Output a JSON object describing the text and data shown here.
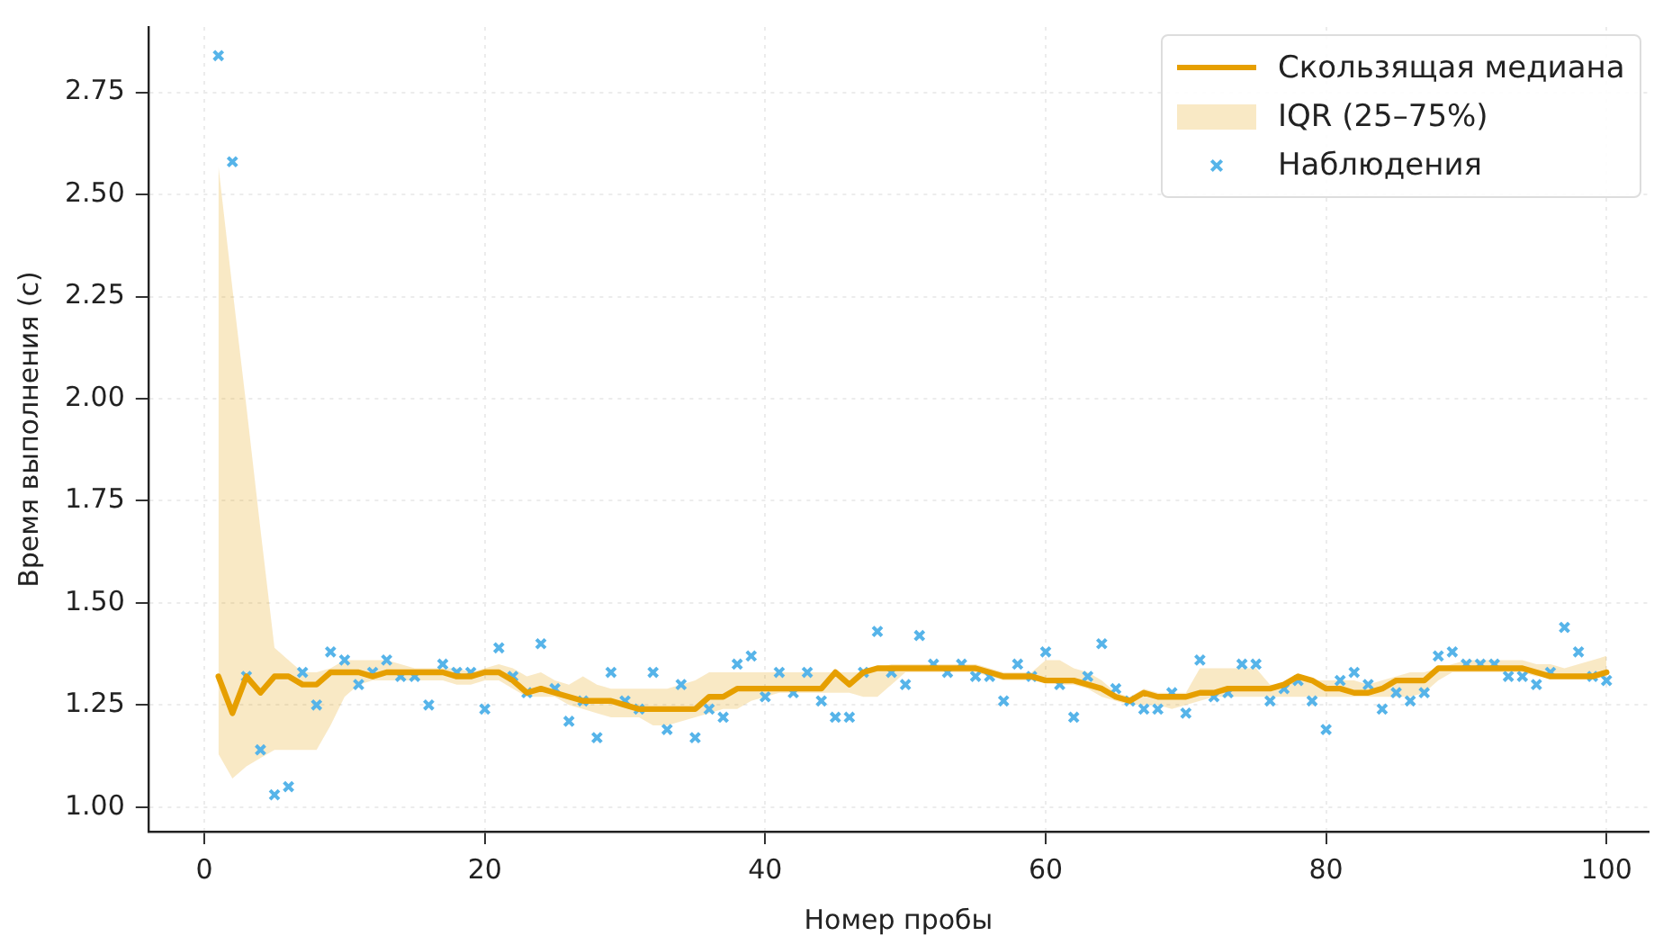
{
  "chart_data": {
    "type": "line",
    "xlabel": "Номер пробы",
    "ylabel": "Время выполнения (с)",
    "x": [
      1,
      2,
      3,
      4,
      5,
      6,
      7,
      8,
      9,
      10,
      11,
      12,
      13,
      14,
      15,
      16,
      17,
      18,
      19,
      20,
      21,
      22,
      23,
      24,
      25,
      26,
      27,
      28,
      29,
      30,
      31,
      32,
      33,
      34,
      35,
      36,
      37,
      38,
      39,
      40,
      41,
      42,
      43,
      44,
      45,
      46,
      47,
      48,
      49,
      50,
      51,
      52,
      53,
      54,
      55,
      56,
      57,
      58,
      59,
      60,
      61,
      62,
      63,
      64,
      65,
      66,
      67,
      68,
      69,
      70,
      71,
      72,
      73,
      74,
      75,
      76,
      77,
      78,
      79,
      80,
      81,
      82,
      83,
      84,
      85,
      86,
      87,
      88,
      89,
      90,
      91,
      92,
      93,
      94,
      95,
      96,
      97,
      98,
      99,
      100
    ],
    "xlim": [
      -4,
      103
    ],
    "xticks": [
      0,
      20,
      40,
      60,
      80,
      100
    ],
    "ylim": [
      0.94,
      2.91
    ],
    "yticks": [
      {
        "value": 1,
        "label": "1.00"
      },
      {
        "value": 1.25,
        "label": "1.25"
      },
      {
        "value": 1.5,
        "label": "1.50"
      },
      {
        "value": 1.75,
        "label": "1.75"
      },
      {
        "value": 2,
        "label": "2.00"
      },
      {
        "value": 2.25,
        "label": "2.25"
      },
      {
        "value": 2.5,
        "label": "2.50"
      },
      {
        "value": 2.75,
        "label": "2.75"
      }
    ],
    "grid": true,
    "legend": "top right",
    "line_style": "solid",
    "annotations": [
      "IQR (25–75%)"
    ],
    "series": [
      {
        "name": "Скользящая медиана",
        "color": "#e69f00",
        "values": [
          1.32,
          1.23,
          1.32,
          1.28,
          1.32,
          1.32,
          1.3,
          1.3,
          1.33,
          1.33,
          1.33,
          1.32,
          1.33,
          1.33,
          1.33,
          1.33,
          1.33,
          1.32,
          1.32,
          1.33,
          1.33,
          1.31,
          1.28,
          1.29,
          1.28,
          1.27,
          1.26,
          1.26,
          1.26,
          1.25,
          1.24,
          1.24,
          1.24,
          1.24,
          1.24,
          1.27,
          1.27,
          1.29,
          1.29,
          1.29,
          1.29,
          1.29,
          1.29,
          1.29,
          1.33,
          1.3,
          1.33,
          1.34,
          1.34,
          1.34,
          1.34,
          1.34,
          1.34,
          1.34,
          1.34,
          1.33,
          1.32,
          1.32,
          1.32,
          1.31,
          1.31,
          1.31,
          1.3,
          1.29,
          1.27,
          1.26,
          1.28,
          1.27,
          1.27,
          1.27,
          1.28,
          1.28,
          1.29,
          1.29,
          1.29,
          1.29,
          1.3,
          1.32,
          1.31,
          1.29,
          1.29,
          1.28,
          1.28,
          1.29,
          1.31,
          1.31,
          1.31,
          1.34,
          1.34,
          1.34,
          1.34,
          1.34,
          1.34,
          1.34,
          1.33,
          1.32,
          1.32,
          1.32,
          1.32,
          1.33
        ],
        "lower": [
          1.13,
          1.07,
          1.1,
          1.12,
          1.14,
          1.14,
          1.14,
          1.14,
          1.2,
          1.27,
          1.3,
          1.31,
          1.31,
          1.31,
          1.31,
          1.31,
          1.31,
          1.3,
          1.3,
          1.31,
          1.31,
          1.29,
          1.27,
          1.27,
          1.27,
          1.25,
          1.24,
          1.23,
          1.22,
          1.22,
          1.22,
          1.2,
          1.2,
          1.21,
          1.22,
          1.23,
          1.24,
          1.24,
          1.26,
          1.27,
          1.28,
          1.28,
          1.28,
          1.28,
          1.28,
          1.28,
          1.27,
          1.27,
          1.3,
          1.33,
          1.33,
          1.33,
          1.33,
          1.33,
          1.33,
          1.32,
          1.31,
          1.31,
          1.31,
          1.31,
          1.3,
          1.3,
          1.29,
          1.27,
          1.26,
          1.25,
          1.25,
          1.25,
          1.24,
          1.25,
          1.26,
          1.27,
          1.27,
          1.27,
          1.27,
          1.27,
          1.27,
          1.27,
          1.27,
          1.27,
          1.27,
          1.27,
          1.27,
          1.27,
          1.27,
          1.27,
          1.28,
          1.31,
          1.33,
          1.33,
          1.33,
          1.33,
          1.33,
          1.33,
          1.32,
          1.32,
          1.32,
          1.32,
          1.32,
          1.32
        ],
        "upper": [
          2.57,
          2.27,
          1.98,
          1.68,
          1.39,
          1.36,
          1.33,
          1.33,
          1.34,
          1.36,
          1.36,
          1.36,
          1.36,
          1.35,
          1.34,
          1.34,
          1.34,
          1.34,
          1.33,
          1.34,
          1.35,
          1.34,
          1.32,
          1.33,
          1.31,
          1.3,
          1.32,
          1.3,
          1.29,
          1.29,
          1.29,
          1.29,
          1.29,
          1.3,
          1.31,
          1.33,
          1.33,
          1.33,
          1.33,
          1.33,
          1.33,
          1.33,
          1.33,
          1.33,
          1.33,
          1.33,
          1.33,
          1.34,
          1.35,
          1.35,
          1.35,
          1.35,
          1.35,
          1.35,
          1.35,
          1.34,
          1.33,
          1.33,
          1.33,
          1.36,
          1.36,
          1.34,
          1.33,
          1.31,
          1.28,
          1.27,
          1.29,
          1.28,
          1.28,
          1.28,
          1.34,
          1.34,
          1.34,
          1.34,
          1.34,
          1.3,
          1.3,
          1.31,
          1.31,
          1.31,
          1.31,
          1.31,
          1.3,
          1.31,
          1.32,
          1.33,
          1.33,
          1.34,
          1.35,
          1.36,
          1.36,
          1.36,
          1.36,
          1.36,
          1.35,
          1.35,
          1.34,
          1.35,
          1.36,
          1.37
        ]
      },
      {
        "type": "scatter",
        "name": "Наблюдения",
        "color": "#56b4e9",
        "marker": "cross",
        "values": [
          2.84,
          2.58,
          1.32,
          1.14,
          1.03,
          1.05,
          1.33,
          1.25,
          1.38,
          1.36,
          1.3,
          1.33,
          1.36,
          1.32,
          1.32,
          1.25,
          1.35,
          1.33,
          1.33,
          1.24,
          1.39,
          1.32,
          1.28,
          1.4,
          1.29,
          1.21,
          1.26,
          1.17,
          1.33,
          1.26,
          1.24,
          1.33,
          1.19,
          1.3,
          1.17,
          1.24,
          1.22,
          1.35,
          1.37,
          1.27,
          1.33,
          1.28,
          1.33,
          1.26,
          1.22,
          1.22,
          1.33,
          1.43,
          1.33,
          1.3,
          1.42,
          1.35,
          1.33,
          1.35,
          1.32,
          1.32,
          1.26,
          1.35,
          1.32,
          1.38,
          1.3,
          1.22,
          1.32,
          1.4,
          1.29,
          1.26,
          1.24,
          1.24,
          1.28,
          1.23,
          1.36,
          1.27,
          1.28,
          1.35,
          1.35,
          1.26,
          1.29,
          1.31,
          1.26,
          1.19,
          1.31,
          1.33,
          1.3,
          1.24,
          1.28,
          1.26,
          1.28,
          1.37,
          1.38,
          1.35,
          1.35,
          1.35,
          1.32,
          1.32,
          1.3,
          1.33,
          1.44,
          1.38,
          1.32,
          1.31
        ]
      }
    ]
  }
}
